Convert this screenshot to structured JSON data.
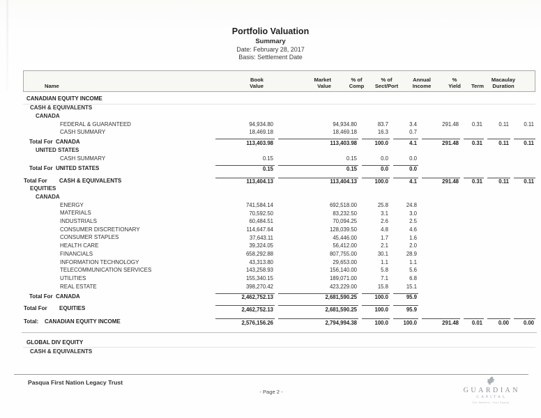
{
  "page": {
    "title": "Portfolio Valuation",
    "subtitle": "Summary",
    "date_line": "Date: February 28, 2017",
    "basis_line": "Basis: Settlement Date"
  },
  "table": {
    "columns": [
      {
        "id": "name",
        "lines": [
          "Name"
        ]
      },
      {
        "id": "book",
        "lines": [
          "Book",
          "Value"
        ]
      },
      {
        "id": "market",
        "lines": [
          "Market",
          "Value"
        ]
      },
      {
        "id": "comp",
        "lines": [
          "% of",
          "Comp"
        ]
      },
      {
        "id": "sect",
        "lines": [
          "% of",
          "Sect/Port"
        ]
      },
      {
        "id": "income",
        "lines": [
          "Annual",
          "Income"
        ]
      },
      {
        "id": "yield",
        "lines": [
          "%",
          "Yield"
        ]
      },
      {
        "id": "term",
        "lines": [
          "Term"
        ]
      },
      {
        "id": "duration",
        "lines": [
          "Macaulay",
          "Duration"
        ]
      }
    ],
    "rows": [
      {
        "type": "composite",
        "label": "CANADIAN EQUITY INCOME",
        "values": [
          "",
          "",
          "",
          "",
          "",
          "",
          "",
          ""
        ]
      },
      {
        "type": "class",
        "label": "CASH & EQUIVALENTS",
        "values": [
          "",
          "",
          "",
          "",
          "",
          "",
          "",
          ""
        ]
      },
      {
        "type": "country",
        "label": "CANADA",
        "values": [
          "",
          "",
          "",
          "",
          "",
          "",
          "",
          ""
        ]
      },
      {
        "type": "item",
        "label": "FEDERAL & GUARANTEED",
        "values": [
          "94,934.80",
          "94,934.80",
          "83.7",
          "3.4",
          "291.48",
          "0.31",
          "0.11",
          "0.11"
        ]
      },
      {
        "type": "item",
        "label": "CASH SUMMARY",
        "values": [
          "18,469.18",
          "18,469.18",
          "16.3",
          "0.7",
          "",
          "",
          "",
          ""
        ]
      },
      {
        "type": "total",
        "prefix": "Total For",
        "label": "CANADA",
        "values": [
          "113,403.98",
          "113,403.98",
          "100.0",
          "4.1",
          "291.48",
          "0.31",
          "0.11",
          "0.11"
        ]
      },
      {
        "type": "country",
        "label": "UNITED STATES",
        "values": [
          "",
          "",
          "",
          "",
          "",
          "",
          "",
          ""
        ]
      },
      {
        "type": "item",
        "label": "CASH SUMMARY",
        "values": [
          "0.15",
          "0.15",
          "0.0",
          "0.0",
          "",
          "",
          "",
          ""
        ]
      },
      {
        "type": "total",
        "prefix": "Total For",
        "label": "UNITED STATES",
        "values": [
          "0.15",
          "0.15",
          "0.0",
          "0.0",
          "",
          "",
          "",
          ""
        ]
      },
      {
        "type": "total2",
        "prefix": "Total For",
        "label": "CASH & EQUIVALENTS",
        "values": [
          "113,404.13",
          "113,404.13",
          "100.0",
          "4.1",
          "291.48",
          "0.31",
          "0.11",
          "0.11"
        ]
      },
      {
        "type": "class",
        "label": "EQUITIES",
        "values": [
          "",
          "",
          "",
          "",
          "",
          "",
          "",
          ""
        ]
      },
      {
        "type": "country",
        "label": "CANADA",
        "values": [
          "",
          "",
          "",
          "",
          "",
          "",
          "",
          ""
        ]
      },
      {
        "type": "item",
        "label": "ENERGY",
        "values": [
          "741,584.14",
          "692,518.00",
          "25.8",
          "24.8",
          "",
          "",
          "",
          ""
        ]
      },
      {
        "type": "item",
        "label": "MATERIALS",
        "values": [
          "70,592.50",
          "83,232.50",
          "3.1",
          "3.0",
          "",
          "",
          "",
          ""
        ]
      },
      {
        "type": "item",
        "label": "INDUSTRIALS",
        "values": [
          "60,484.51",
          "70,094.25",
          "2.6",
          "2.5",
          "",
          "",
          "",
          ""
        ]
      },
      {
        "type": "item",
        "label": "CONSUMER DISCRETIONARY",
        "values": [
          "114,647.64",
          "128,039.50",
          "4.8",
          "4.6",
          "",
          "",
          "",
          ""
        ]
      },
      {
        "type": "item",
        "label": "CONSUMER STAPLES",
        "values": [
          "37,643.11",
          "45,446.00",
          "1.7",
          "1.6",
          "",
          "",
          "",
          ""
        ]
      },
      {
        "type": "item",
        "label": "HEALTH CARE",
        "values": [
          "39,324.05",
          "56,412.00",
          "2.1",
          "2.0",
          "",
          "",
          "",
          ""
        ]
      },
      {
        "type": "item",
        "label": "FINANCIALS",
        "values": [
          "658,292.88",
          "807,755.00",
          "30.1",
          "28.9",
          "",
          "",
          "",
          ""
        ]
      },
      {
        "type": "item",
        "label": "INFORMATION TECHNOLOGY",
        "values": [
          "43,313.80",
          "29,653.00",
          "1.1",
          "1.1",
          "",
          "",
          "",
          ""
        ]
      },
      {
        "type": "item",
        "label": "TELECOMMUNICATION SERVICES",
        "values": [
          "143,258.93",
          "156,140.00",
          "5.8",
          "5.6",
          "",
          "",
          "",
          ""
        ]
      },
      {
        "type": "item",
        "label": "UTILITIES",
        "values": [
          "155,340.15",
          "189,071.00",
          "7.1",
          "6.8",
          "",
          "",
          "",
          ""
        ]
      },
      {
        "type": "item",
        "label": "REAL ESTATE",
        "values": [
          "398,270.42",
          "423,229.00",
          "15.8",
          "15.1",
          "",
          "",
          "",
          ""
        ]
      },
      {
        "type": "total",
        "prefix": "Total For",
        "label": "CANADA",
        "values": [
          "2,462,752.13",
          "2,681,590.25",
          "100.0",
          "95.9",
          "",
          "",
          "",
          ""
        ]
      },
      {
        "type": "total2",
        "prefix": "Total For",
        "label": "EQUITIES",
        "values": [
          "2,462,752.13",
          "2,681,590.25",
          "100.0",
          "95.9",
          "",
          "",
          "",
          ""
        ]
      },
      {
        "type": "grand",
        "prefix": "Total:",
        "label": "CANADIAN EQUITY INCOME",
        "values": [
          "2,576,156.26",
          "2,794,994.38",
          "100.0",
          "100.0",
          "291.48",
          "0.01",
          "0.00",
          "0.00"
        ]
      },
      {
        "type": "composite",
        "sep": true,
        "label": "GLOBAL DIV EQUITY",
        "values": [
          "",
          "",
          "",
          "",
          "",
          "",
          "",
          ""
        ]
      },
      {
        "type": "class",
        "label": "CASH & EQUIVALENTS",
        "values": [
          "",
          "",
          "",
          "",
          "",
          "",
          "",
          ""
        ]
      }
    ]
  },
  "footer": {
    "account_name": "Pasqua First Nation Legacy Trust",
    "page_label": "- Page 2 -",
    "logo": {
      "name": "GUARDIAN",
      "sub": "CAPITAL",
      "tagline": "The Matters, Your Equity"
    }
  },
  "colors": {
    "text": "#2d2d2d",
    "rule": "#4e4e4e",
    "logo_gray": "#8a9199"
  }
}
